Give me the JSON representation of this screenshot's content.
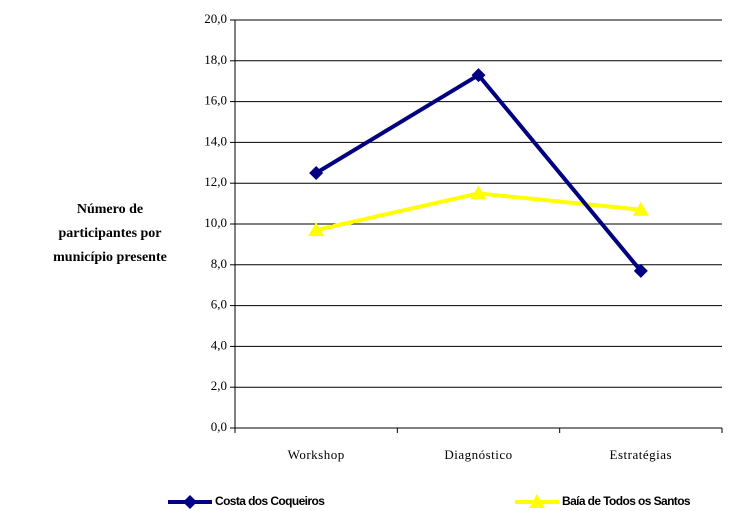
{
  "chart_data": {
    "type": "line",
    "ylabel": [
      "Número de",
      "participantes por",
      "município presente"
    ],
    "categories": [
      "Workshop",
      "Diagnóstico",
      "Estratégias"
    ],
    "series": [
      {
        "name": "Costa dos Coqueiros",
        "color": "#000080",
        "marker": "diamond",
        "values": [
          12.5,
          17.3,
          7.7
        ]
      },
      {
        "name": "Baía de Todos os Santos",
        "color": "#ffff00",
        "marker": "triangle",
        "values": [
          9.7,
          11.5,
          10.7
        ]
      }
    ],
    "ylim": [
      0,
      20
    ],
    "yticks": [
      {
        "value": 0,
        "label": "0,0"
      },
      {
        "value": 2,
        "label": "2,0"
      },
      {
        "value": 4,
        "label": "4,0"
      },
      {
        "value": 6,
        "label": "6,0"
      },
      {
        "value": 8,
        "label": "8,0"
      },
      {
        "value": 10,
        "label": "10,0"
      },
      {
        "value": 12,
        "label": "12,0"
      },
      {
        "value": 14,
        "label": "14,0"
      },
      {
        "value": 16,
        "label": "16,0"
      },
      {
        "value": 18,
        "label": "18,0"
      },
      {
        "value": 20,
        "label": "20,0"
      }
    ],
    "grid": true,
    "legend": "bottom"
  }
}
